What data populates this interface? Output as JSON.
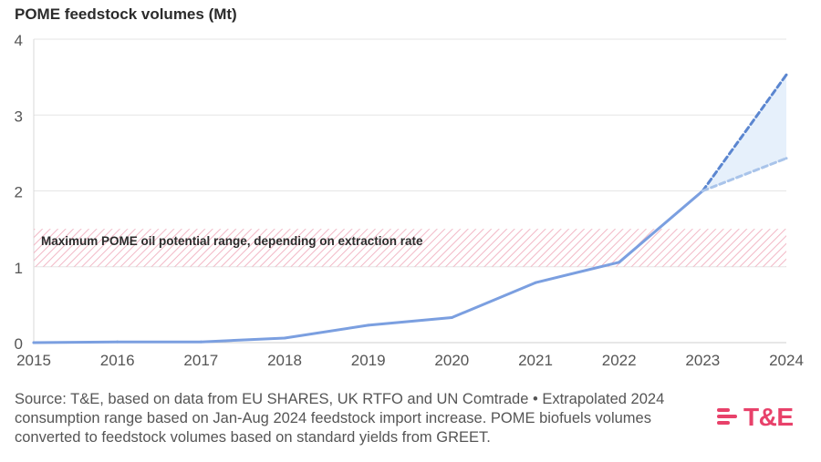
{
  "chart_data": {
    "type": "line",
    "title": "POME feedstock volumes (Mt)",
    "xlabel": "",
    "ylabel": "",
    "xlim": [
      2015,
      2024
    ],
    "ylim": [
      0,
      4
    ],
    "x_ticks": [
      "2015",
      "2016",
      "2017",
      "2018",
      "2019",
      "2020",
      "2021",
      "2022",
      "2023",
      "2024"
    ],
    "y_ticks": [
      "0",
      "1",
      "2",
      "3",
      "4"
    ],
    "grid": true,
    "series": [
      {
        "name": "POME feedstock volumes",
        "color": "#7b9fe0",
        "style": "solid",
        "x": [
          2015,
          2016,
          2017,
          2018,
          2019,
          2020,
          2021,
          2022,
          2023
        ],
        "values": [
          0.0,
          0.01,
          0.01,
          0.06,
          0.23,
          0.33,
          0.79,
          1.06,
          2.0
        ]
      },
      {
        "name": "Extrapolated 2024 high",
        "color": "#5b86d0",
        "style": "dashed",
        "x": [
          2023,
          2024
        ],
        "values": [
          2.0,
          3.53
        ]
      },
      {
        "name": "Extrapolated 2024 low",
        "color": "#a9c4ea",
        "style": "dashed",
        "x": [
          2023,
          2024
        ],
        "values": [
          2.0,
          2.43
        ]
      }
    ],
    "range_fill_color": "#e6f0fb",
    "band": {
      "label": "Maximum POME oil potential range, depending on extraction rate",
      "from": 1.0,
      "to": 1.5,
      "color": "#f2b8c6"
    }
  },
  "source_text": "Source: T&E, based on data from EU SHARES, UK RTFO and UN Comtrade • Extrapolated 2024 consumption range based on Jan-Aug 2024 feedstock import increase. POME biofuels volumes converted to feedstock volumes based on standard yields from GREET.",
  "logo": {
    "text": "T&E",
    "color": "#e8416a"
  }
}
